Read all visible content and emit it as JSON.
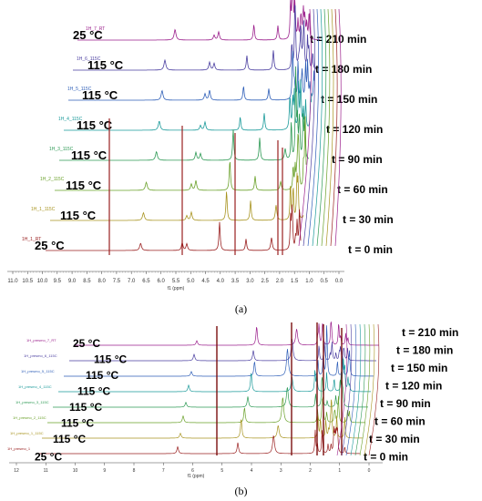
{
  "figure": {
    "panel_a": {
      "caption": "(a)",
      "x_axis_label": "f1 (ppm)",
      "x_ticks": [
        "11.0",
        "10.5",
        "10.0",
        "9.5",
        "9.0",
        "8.5",
        "8.0",
        "7.5",
        "7.0",
        "6.5",
        "6.0",
        "5.5",
        "5.0",
        "4.5",
        "4.0",
        "3.5",
        "3.0",
        "2.5",
        "2.0",
        "1.5",
        "1.0",
        "0.5",
        "0.0"
      ],
      "spectra": [
        {
          "label": "1H_7_RT",
          "temperature": "25 °C",
          "time": "t = 210 min",
          "color": "#9b1f8c"
        },
        {
          "label": "1H_6_115C",
          "temperature": "115 °C",
          "time": "t = 180 min",
          "color": "#4a3ea0"
        },
        {
          "label": "1H_5_115C",
          "temperature": "115 °C",
          "time": "t = 150 min",
          "color": "#2f5fb8"
        },
        {
          "label": "1H_4_115C",
          "temperature": "115 °C",
          "time": "t = 120 min",
          "color": "#1a9a9a"
        },
        {
          "label": "1H_3_115C",
          "temperature": "115 °C",
          "time": "t = 90 min",
          "color": "#2e9a55"
        },
        {
          "label": "1H_2_115C",
          "temperature": "115 °C",
          "time": "t = 60 min",
          "color": "#6aa12a"
        },
        {
          "label": "1H_1_115C",
          "temperature": "115 °C",
          "time": "t = 30 min",
          "color": "#a89420"
        },
        {
          "label": "1H_1_RT",
          "temperature": "25 °C",
          "time": "t = 0 min",
          "color": "#9a2020"
        }
      ]
    },
    "panel_b": {
      "caption": "(b)",
      "x_axis_label": "f1 (ppm)",
      "x_ticks": [
        "12",
        "11",
        "10",
        "9",
        "8",
        "7",
        "6",
        "5",
        "4",
        "3",
        "2",
        "1",
        "0"
      ],
      "spectra": [
        {
          "label": "1H_presmo_7_RT",
          "color": "#9b1f8c"
        },
        {
          "label": "1H_presmo_6_115C",
          "color": "#4a3ea0"
        },
        {
          "label": "1H_presmo_5_115C",
          "color": "#2f5fb8"
        },
        {
          "label": "1H_presmo_4_115C",
          "color": "#1a9a9a"
        },
        {
          "label": "1H_presmo_3_115C",
          "color": "#2e9a55"
        },
        {
          "label": "1H_presmo_2_115C",
          "color": "#6aa12a"
        },
        {
          "label": "1H_presmo_1_115C",
          "color": "#a89420"
        },
        {
          "label": "1H_presmo_1",
          "color": "#9a2020"
        }
      ],
      "temperatures": [
        "25 °C",
        "115 °C",
        "115 °C",
        "115 °C",
        "115 °C",
        "115 °C",
        "115 °C",
        "25 °C"
      ],
      "times": [
        "t = 210 min",
        "t = 180 min",
        "t = 150 min",
        "t = 120 min",
        "t = 90 min",
        "t = 60 min",
        "t = 30 min",
        "t = 0 min"
      ]
    }
  }
}
